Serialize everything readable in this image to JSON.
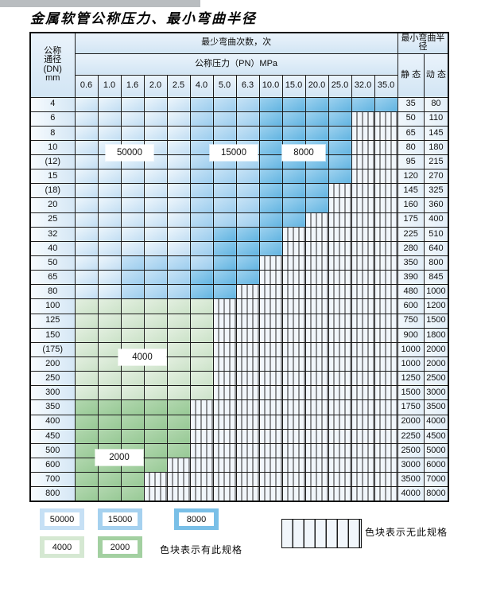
{
  "title": "金属软管公称压力、最小弯曲半径",
  "table": {
    "dn_header_lines": [
      "公称",
      "通径",
      "(DN)",
      "mm"
    ],
    "cycles_header": "最少弯曲次数，次",
    "pressure_header": "公称压力（PN）MPa",
    "pressures": [
      "0.6",
      "1.0",
      "1.6",
      "2.0",
      "2.5",
      "4.0",
      "5.0",
      "6.3",
      "10.0",
      "15.0",
      "20.0",
      "25.0",
      "32.0",
      "35.0"
    ],
    "radius_header": "最小弯曲半径",
    "static_header": "静 态",
    "dynamic_header": "动 态",
    "zone_legend_meaning": {
      "b50": "50000",
      "b15": "15000",
      "b8": "8000",
      "g4": "4000",
      "g2": "2000",
      "hx": "无此规格"
    },
    "rows": [
      {
        "dn": "4",
        "zones": [
          [
            "b50",
            0,
            4
          ],
          [
            "b15",
            5,
            7
          ],
          [
            "b8",
            8,
            13
          ]
        ],
        "static": "35",
        "dynamic": "80"
      },
      {
        "dn": "6",
        "zones": [
          [
            "b50",
            0,
            4
          ],
          [
            "b15",
            5,
            7
          ],
          [
            "b8",
            8,
            11
          ]
        ],
        "static": "50",
        "dynamic": "110"
      },
      {
        "dn": "8",
        "zones": [
          [
            "b50",
            0,
            4
          ],
          [
            "b15",
            5,
            7
          ],
          [
            "b8",
            8,
            11
          ]
        ],
        "static": "65",
        "dynamic": "145"
      },
      {
        "dn": "10",
        "zones": [
          [
            "b50",
            0,
            4
          ],
          [
            "b15",
            5,
            7
          ],
          [
            "b8",
            8,
            11
          ]
        ],
        "static": "80",
        "dynamic": "180"
      },
      {
        "dn": "(12)",
        "zones": [
          [
            "b50",
            0,
            4
          ],
          [
            "b15",
            5,
            7
          ],
          [
            "b8",
            8,
            11
          ]
        ],
        "static": "95",
        "dynamic": "215"
      },
      {
        "dn": "15",
        "zones": [
          [
            "b50",
            0,
            4
          ],
          [
            "b15",
            5,
            7
          ],
          [
            "b8",
            8,
            11
          ]
        ],
        "static": "120",
        "dynamic": "270"
      },
      {
        "dn": "(18)",
        "zones": [
          [
            "b50",
            0,
            4
          ],
          [
            "b15",
            5,
            7
          ],
          [
            "b8",
            8,
            10
          ]
        ],
        "static": "145",
        "dynamic": "325"
      },
      {
        "dn": "20",
        "zones": [
          [
            "b50",
            0,
            4
          ],
          [
            "b15",
            5,
            7
          ],
          [
            "b8",
            8,
            10
          ]
        ],
        "static": "160",
        "dynamic": "360"
      },
      {
        "dn": "25",
        "zones": [
          [
            "b50",
            0,
            4
          ],
          [
            "b15",
            5,
            7
          ],
          [
            "b8",
            8,
            9
          ]
        ],
        "static": "175",
        "dynamic": "400"
      },
      {
        "dn": "32",
        "zones": [
          [
            "b50",
            0,
            4
          ],
          [
            "b15",
            5,
            5
          ],
          [
            "b8",
            6,
            8
          ]
        ],
        "static": "225",
        "dynamic": "510"
      },
      {
        "dn": "40",
        "zones": [
          [
            "b50",
            0,
            4
          ],
          [
            "b15",
            5,
            5
          ],
          [
            "b8",
            6,
            8
          ]
        ],
        "static": "280",
        "dynamic": "640"
      },
      {
        "dn": "50",
        "zones": [
          [
            "b50",
            0,
            1
          ],
          [
            "b15",
            2,
            5
          ],
          [
            "b8",
            6,
            7
          ]
        ],
        "static": "350",
        "dynamic": "800"
      },
      {
        "dn": "65",
        "zones": [
          [
            "b50",
            0,
            1
          ],
          [
            "b15",
            2,
            4
          ],
          [
            "b8",
            5,
            7
          ]
        ],
        "static": "390",
        "dynamic": "845"
      },
      {
        "dn": "80",
        "zones": [
          [
            "b50",
            0,
            1
          ],
          [
            "b15",
            2,
            4
          ],
          [
            "b8",
            5,
            6
          ]
        ],
        "static": "480",
        "dynamic": "1000"
      },
      {
        "dn": "100",
        "zones": [
          [
            "g4",
            0,
            5
          ]
        ],
        "static": "600",
        "dynamic": "1200"
      },
      {
        "dn": "125",
        "zones": [
          [
            "g4",
            0,
            5
          ]
        ],
        "static": "750",
        "dynamic": "1500"
      },
      {
        "dn": "150",
        "zones": [
          [
            "g4",
            0,
            5
          ]
        ],
        "static": "900",
        "dynamic": "1800"
      },
      {
        "dn": "(175)",
        "zones": [
          [
            "g4",
            0,
            5
          ]
        ],
        "static": "1000",
        "dynamic": "2000"
      },
      {
        "dn": "200",
        "zones": [
          [
            "g4",
            0,
            5
          ]
        ],
        "static": "1000",
        "dynamic": "2000"
      },
      {
        "dn": "250",
        "zones": [
          [
            "g4",
            0,
            5
          ]
        ],
        "static": "1250",
        "dynamic": "2500"
      },
      {
        "dn": "300",
        "zones": [
          [
            "g4",
            0,
            5
          ]
        ],
        "static": "1500",
        "dynamic": "3000"
      },
      {
        "dn": "350",
        "zones": [
          [
            "g2",
            0,
            4
          ]
        ],
        "static": "1750",
        "dynamic": "3500"
      },
      {
        "dn": "400",
        "zones": [
          [
            "g2",
            0,
            4
          ]
        ],
        "static": "2000",
        "dynamic": "4000"
      },
      {
        "dn": "450",
        "zones": [
          [
            "g2",
            0,
            4
          ]
        ],
        "static": "2250",
        "dynamic": "4500"
      },
      {
        "dn": "500",
        "zones": [
          [
            "g2",
            0,
            4
          ]
        ],
        "static": "2500",
        "dynamic": "5000"
      },
      {
        "dn": "600",
        "zones": [
          [
            "g2",
            0,
            3
          ]
        ],
        "static": "3000",
        "dynamic": "6000"
      },
      {
        "dn": "700",
        "zones": [
          [
            "g2",
            0,
            2
          ]
        ],
        "static": "3500",
        "dynamic": "7000"
      },
      {
        "dn": "800",
        "zones": [
          [
            "g2",
            0,
            2
          ]
        ],
        "static": "4000",
        "dynamic": "8000"
      }
    ]
  },
  "overlays": {
    "o50000": "50000",
    "o15000": "15000",
    "o8000": "8000",
    "o4000": "4000",
    "o2000": "2000"
  },
  "legend": {
    "items": [
      {
        "label": "50000",
        "color": "#c6e0f5"
      },
      {
        "label": "15000",
        "color": "#a5d1ef"
      },
      {
        "label": "8000",
        "color": "#79bfe7"
      },
      {
        "label": "4000",
        "color": "#d5e8d2"
      },
      {
        "label": "2000",
        "color": "#a3d0a1"
      }
    ],
    "available_note": "色块表示有此规格",
    "unavailable_note": "色块表示无此规格"
  },
  "colors": {
    "cycles_50000": "#c6e0f5",
    "cycles_15000": "#a5d1ef",
    "cycles_8000": "#79bfe7",
    "cycles_4000": "#d5e8d2",
    "cycles_2000": "#a3d0a1",
    "hatch_background": "#f1f6fb",
    "header_background": "#d9e9f6",
    "grid_line": "#1c1c1c"
  }
}
